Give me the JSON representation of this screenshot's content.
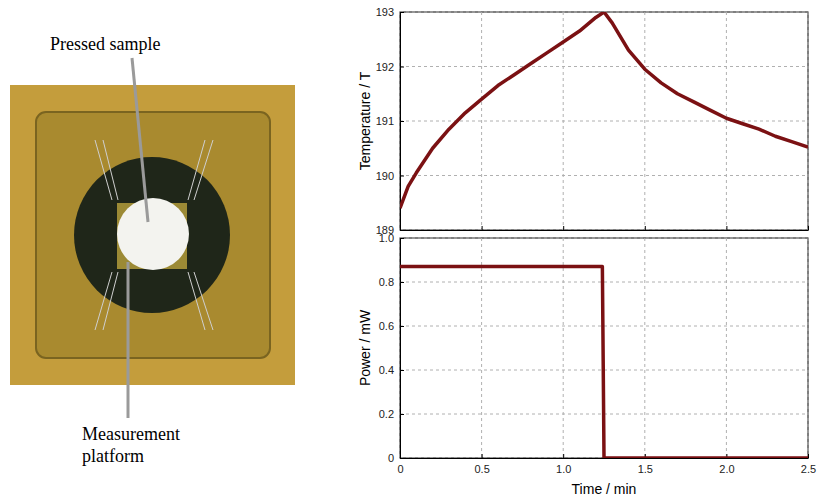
{
  "chart_data": [
    {
      "type": "line",
      "y_label": "Temperature / T",
      "x": [
        0,
        0.05,
        0.1,
        0.2,
        0.3,
        0.4,
        0.5,
        0.6,
        0.7,
        0.8,
        0.9,
        1.0,
        1.1,
        1.2,
        1.25,
        1.3,
        1.4,
        1.5,
        1.6,
        1.7,
        1.8,
        1.9,
        2.0,
        2.1,
        2.2,
        2.3,
        2.4,
        2.5
      ],
      "values": [
        189.4,
        189.8,
        190.05,
        190.5,
        190.85,
        191.15,
        191.4,
        191.65,
        191.85,
        192.05,
        192.25,
        192.45,
        192.65,
        192.9,
        193.0,
        192.8,
        192.3,
        191.95,
        191.7,
        191.5,
        191.35,
        191.2,
        191.05,
        190.95,
        190.85,
        190.72,
        190.62,
        190.52
      ],
      "color": "#7b1113",
      "xlim": [
        0,
        2.5
      ],
      "xticks": [
        0,
        0.5,
        1,
        1.5,
        2,
        2.5
      ],
      "ylim": [
        189,
        193
      ],
      "yticks": [
        189,
        190,
        191,
        192,
        193
      ],
      "grid": true,
      "tick_labels": "y"
    },
    {
      "type": "line",
      "y_label": "Power / mW",
      "x_label": "Time / min",
      "x": [
        0,
        0.25,
        0.5,
        0.75,
        1.0,
        1.24,
        1.245,
        1.25,
        1.5,
        1.75,
        2.0,
        2.25,
        2.5
      ],
      "values": [
        0.87,
        0.87,
        0.87,
        0.87,
        0.87,
        0.87,
        0.44,
        0,
        0,
        0,
        0,
        0,
        0
      ],
      "color": "#7b1113",
      "xlim": [
        0,
        2.5
      ],
      "xticks": [
        0,
        0.5,
        {
          "value": 1,
          "label": "1.0"
        },
        1.5,
        {
          "value": 2,
          "label": "2.0"
        },
        2.5
      ],
      "ylim": [
        0,
        1
      ],
      "yticks": [
        0,
        0.2,
        0.4,
        0.6,
        0.8,
        {
          "value": 1,
          "label": "1.0"
        }
      ],
      "grid": true
    }
  ],
  "photo": {
    "annotations": [
      "Pressed sample",
      "Measurement platform"
    ]
  }
}
